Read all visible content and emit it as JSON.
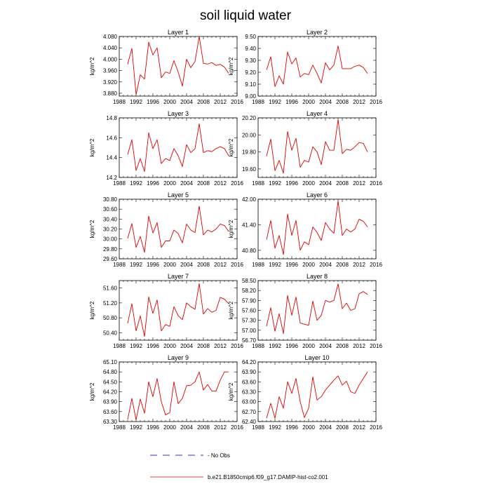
{
  "figure": {
    "title": "soil liquid water",
    "legend": {
      "obs_label": "- No Obs",
      "model_label": "b.e21.B1850cmip6.f09_g17.DAMIP-hist-co2.001"
    }
  },
  "colors": {
    "model": "#e00000",
    "obs": "#3b2bd6",
    "axis": "#000000"
  },
  "chart_data": [
    {
      "type": "line",
      "title": "Layer 1",
      "ylabel": "kg/m^2",
      "xlim": [
        1988,
        2016
      ],
      "ylim": [
        3.87,
        4.08
      ],
      "xticks": [
        "1988",
        "1992",
        "1996",
        "2000",
        "2004",
        "2008",
        "2012",
        "2016"
      ],
      "yticks": [
        "3.880",
        "3.920",
        "3.960",
        "4.000",
        "4.040",
        "4.080"
      ],
      "x": [
        1990,
        1991,
        1992,
        1993,
        1994,
        1995,
        1996,
        1997,
        1998,
        1999,
        2000,
        2001,
        2002,
        2003,
        2004,
        2005,
        2006,
        2007,
        2008,
        2009,
        2010,
        2011,
        2012,
        2013,
        2014
      ],
      "values": [
        3.982,
        4.038,
        3.875,
        3.945,
        3.93,
        4.06,
        4.015,
        4.04,
        3.935,
        3.955,
        3.95,
        3.995,
        3.955,
        3.905,
        4.0,
        3.97,
        3.992,
        4.08,
        3.985,
        3.983,
        3.988,
        3.978,
        3.982,
        3.972,
        3.95
      ]
    },
    {
      "type": "line",
      "title": "Layer 2",
      "ylabel": "kg/m^2",
      "xlim": [
        1988,
        2016
      ],
      "ylim": [
        9.0,
        9.5
      ],
      "xticks": [
        "1988",
        "1992",
        "1996",
        "2000",
        "2004",
        "2008",
        "2012",
        "2016"
      ],
      "yticks": [
        "9.00",
        "9.10",
        "9.20",
        "9.30",
        "9.40",
        "9.50"
      ],
      "x": [
        1990,
        1991,
        1992,
        1993,
        1994,
        1995,
        1996,
        1997,
        1998,
        1999,
        2000,
        2001,
        2002,
        2003,
        2004,
        2005,
        2006,
        2007,
        2008,
        2009,
        2010,
        2011,
        2012,
        2013,
        2014
      ],
      "values": [
        9.22,
        9.33,
        9.08,
        9.17,
        9.1,
        9.37,
        9.27,
        9.32,
        9.16,
        9.19,
        9.18,
        9.26,
        9.19,
        9.11,
        9.28,
        9.22,
        9.26,
        9.42,
        9.23,
        9.23,
        9.23,
        9.25,
        9.26,
        9.24,
        9.19
      ]
    },
    {
      "type": "line",
      "title": "Layer 3",
      "ylabel": "kg/m^2",
      "xlim": [
        1988,
        2016
      ],
      "ylim": [
        14.2,
        14.8
      ],
      "xticks": [
        "1988",
        "1992",
        "1996",
        "2000",
        "2004",
        "2008",
        "2012",
        "2016"
      ],
      "yticks": [
        "14.2",
        "14.4",
        "14.6",
        "14.8"
      ],
      "x": [
        1990,
        1991,
        1992,
        1993,
        1994,
        1995,
        1996,
        1997,
        1998,
        1999,
        2000,
        2001,
        2002,
        2003,
        2004,
        2005,
        2006,
        2007,
        2008,
        2009,
        2010,
        2011,
        2012,
        2013,
        2014
      ],
      "values": [
        14.43,
        14.58,
        14.27,
        14.39,
        14.26,
        14.65,
        14.49,
        14.58,
        14.34,
        14.39,
        14.37,
        14.49,
        14.42,
        14.31,
        14.53,
        14.45,
        14.49,
        14.74,
        14.45,
        14.47,
        14.46,
        14.49,
        14.51,
        14.49,
        14.42
      ]
    },
    {
      "type": "line",
      "title": "Layer 4",
      "ylabel": "kg/m^2",
      "xlim": [
        1988,
        2016
      ],
      "ylim": [
        19.5,
        20.2
      ],
      "xticks": [
        "1988",
        "1992",
        "1996",
        "2000",
        "2004",
        "2008",
        "2012",
        "2016"
      ],
      "yticks": [
        "19.60",
        "19.80",
        "20.00",
        "20.20"
      ],
      "x": [
        1990,
        1991,
        1992,
        1993,
        1994,
        1995,
        1996,
        1997,
        1998,
        1999,
        2000,
        2001,
        2002,
        2003,
        2004,
        2005,
        2006,
        2007,
        2008,
        2009,
        2010,
        2011,
        2012,
        2013,
        2014
      ],
      "values": [
        19.75,
        19.95,
        19.58,
        19.7,
        19.55,
        20.04,
        19.82,
        19.96,
        19.62,
        19.7,
        19.68,
        19.86,
        19.8,
        19.65,
        19.92,
        19.82,
        19.82,
        20.18,
        19.78,
        19.83,
        19.82,
        19.86,
        19.91,
        19.9,
        19.8
      ]
    },
    {
      "type": "line",
      "title": "Layer 5",
      "ylabel": "kg/m^2",
      "xlim": [
        1988,
        2016
      ],
      "ylim": [
        29.6,
        30.8
      ],
      "xticks": [
        "1988",
        "1992",
        "1996",
        "2000",
        "2004",
        "2008",
        "2012",
        "2016"
      ],
      "yticks": [
        "29.60",
        "29.80",
        "30.00",
        "30.20",
        "30.40",
        "30.60",
        "30.80"
      ],
      "x": [
        1990,
        1991,
        1992,
        1993,
        1994,
        1995,
        1996,
        1997,
        1998,
        1999,
        2000,
        2001,
        2002,
        2003,
        2004,
        2005,
        2006,
        2007,
        2008,
        2009,
        2010,
        2011,
        2012,
        2013,
        2014
      ],
      "values": [
        30.01,
        30.31,
        29.83,
        30.05,
        29.73,
        30.46,
        30.12,
        30.33,
        29.83,
        29.96,
        29.96,
        30.18,
        30.11,
        29.92,
        30.3,
        30.18,
        30.13,
        30.66,
        30.08,
        30.18,
        30.14,
        30.2,
        30.3,
        30.27,
        30.15
      ]
    },
    {
      "type": "line",
      "title": "Layer 6",
      "ylabel": "kg/m^2",
      "xlim": [
        1988,
        2016
      ],
      "ylim": [
        40.6,
        42.0
      ],
      "xticks": [
        "1988",
        "1992",
        "1996",
        "2000",
        "2004",
        "2008",
        "2012",
        "2016"
      ],
      "yticks": [
        "40.80",
        "41.40",
        "42.00"
      ],
      "x": [
        1990,
        1991,
        1992,
        1993,
        1994,
        1995,
        1996,
        1997,
        1998,
        1999,
        2000,
        2001,
        2002,
        2003,
        2004,
        2005,
        2006,
        2007,
        2008,
        2009,
        2010,
        2011,
        2012,
        2013,
        2014
      ],
      "values": [
        41.05,
        41.5,
        40.85,
        41.15,
        40.7,
        41.65,
        41.15,
        41.5,
        40.8,
        41.0,
        40.93,
        41.35,
        41.22,
        41.03,
        41.45,
        41.3,
        41.2,
        41.96,
        41.15,
        41.3,
        41.23,
        41.3,
        41.53,
        41.48,
        41.35
      ]
    },
    {
      "type": "line",
      "title": "Layer 7",
      "ylabel": "kg/m^2",
      "xlim": [
        1988,
        2016
      ],
      "ylim": [
        50.2,
        51.8
      ],
      "xticks": [
        "1988",
        "1992",
        "1996",
        "2000",
        "2004",
        "2008",
        "2012",
        "2016"
      ],
      "yticks": [
        "50.40",
        "50.80",
        "51.20",
        "51.60"
      ],
      "x": [
        1990,
        1991,
        1992,
        1993,
        1994,
        1995,
        1996,
        1997,
        1998,
        1999,
        2000,
        2001,
        2002,
        2003,
        2004,
        2005,
        2006,
        2007,
        2008,
        2009,
        2010,
        2011,
        2012,
        2013,
        2014
      ],
      "values": [
        50.65,
        51.18,
        50.45,
        50.85,
        50.3,
        51.36,
        50.92,
        51.28,
        50.45,
        50.62,
        50.57,
        51.1,
        50.86,
        50.75,
        51.2,
        51.1,
        51.03,
        51.72,
        50.9,
        51.05,
        50.95,
        51.0,
        51.35,
        51.3,
        51.18
      ]
    },
    {
      "type": "line",
      "title": "Layer 8",
      "ylabel": "kg/m^2",
      "xlim": [
        1988,
        2016
      ],
      "ylim": [
        56.7,
        58.5
      ],
      "xticks": [
        "1988",
        "1992",
        "1996",
        "2000",
        "2004",
        "2008",
        "2012",
        "2016"
      ],
      "yticks": [
        "56.70",
        "57.00",
        "57.30",
        "57.60",
        "57.90",
        "58.20",
        "58.50"
      ],
      "x": [
        1990,
        1991,
        1992,
        1993,
        1994,
        1995,
        1996,
        1997,
        1998,
        1999,
        2000,
        2001,
        2002,
        2003,
        2004,
        2005,
        2006,
        2007,
        2008,
        2009,
        2010,
        2011,
        2012,
        2013,
        2014
      ],
      "values": [
        57.12,
        57.68,
        56.97,
        57.5,
        56.9,
        58.05,
        57.45,
        58.0,
        57.22,
        57.18,
        57.15,
        57.88,
        57.3,
        57.45,
        57.9,
        57.85,
        57.9,
        58.4,
        57.65,
        57.82,
        57.6,
        57.65,
        58.1,
        58.17,
        58.08
      ]
    },
    {
      "type": "line",
      "title": "Layer 9",
      "ylabel": "kg/m^2",
      "xlim": [
        1988,
        2016
      ],
      "ylim": [
        63.3,
        65.1
      ],
      "xticks": [
        "1988",
        "1992",
        "1996",
        "2000",
        "2004",
        "2008",
        "2012",
        "2016"
      ],
      "yticks": [
        "63.30",
        "63.60",
        "63.90",
        "64.20",
        "64.50",
        "64.80",
        "65.10"
      ],
      "x": [
        1990,
        1991,
        1992,
        1993,
        1994,
        1995,
        1996,
        1997,
        1998,
        1999,
        2000,
        2001,
        2002,
        2003,
        2004,
        2005,
        2006,
        2007,
        2008,
        2009,
        2010,
        2011,
        2012,
        2013,
        2014
      ],
      "values": [
        63.36,
        64.0,
        63.35,
        63.98,
        63.55,
        64.5,
        64.05,
        64.6,
        63.9,
        63.5,
        63.57,
        64.5,
        63.84,
        64.0,
        64.38,
        64.4,
        64.5,
        64.8,
        64.25,
        64.42,
        64.22,
        64.22,
        64.55,
        64.8,
        64.8
      ]
    },
    {
      "type": "line",
      "title": "Layer 10",
      "ylabel": "kg/m^2",
      "xlim": [
        1988,
        2016
      ],
      "ylim": [
        62.4,
        64.2
      ],
      "xticks": [
        "1988",
        "1992",
        "1996",
        "2000",
        "2004",
        "2008",
        "2012",
        "2016"
      ],
      "yticks": [
        "62.40",
        "62.70",
        "63.00",
        "63.30",
        "63.60",
        "63.90",
        "64.20"
      ],
      "x": [
        1990,
        1991,
        1992,
        1993,
        1994,
        1995,
        1996,
        1997,
        1998,
        1999,
        2000,
        2001,
        2002,
        2003,
        2004,
        2005,
        2006,
        2007,
        2008,
        2009,
        2010,
        2011,
        2012,
        2013,
        2014
      ],
      "values": [
        62.5,
        62.95,
        62.5,
        63.15,
        62.8,
        63.6,
        63.25,
        63.7,
        63.0,
        62.52,
        62.8,
        63.75,
        63.05,
        63.15,
        63.35,
        63.5,
        63.65,
        63.78,
        63.5,
        63.62,
        63.3,
        63.25,
        63.5,
        63.7,
        63.9
      ]
    }
  ]
}
